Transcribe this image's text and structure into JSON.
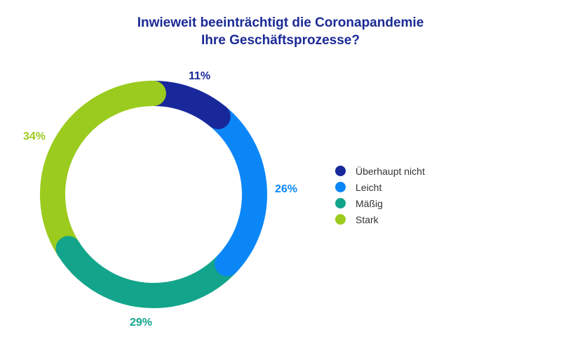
{
  "chart_data": {
    "type": "pie",
    "donut": true,
    "title_lines": [
      "Inwieweit beeinträchtigt die Coronapandemie",
      "Ihre Geschäftsprozesse?"
    ],
    "categories": [
      "Überhaupt nicht",
      "Leicht",
      "Mäßig",
      "Stark"
    ],
    "values": [
      11,
      26,
      29,
      34
    ],
    "labels": [
      "11%",
      "26%",
      "29%",
      "34%"
    ],
    "colors": [
      "#18279a",
      "#0b86f7",
      "#13a58b",
      "#9bcb1e"
    ],
    "legend_position": "right"
  }
}
